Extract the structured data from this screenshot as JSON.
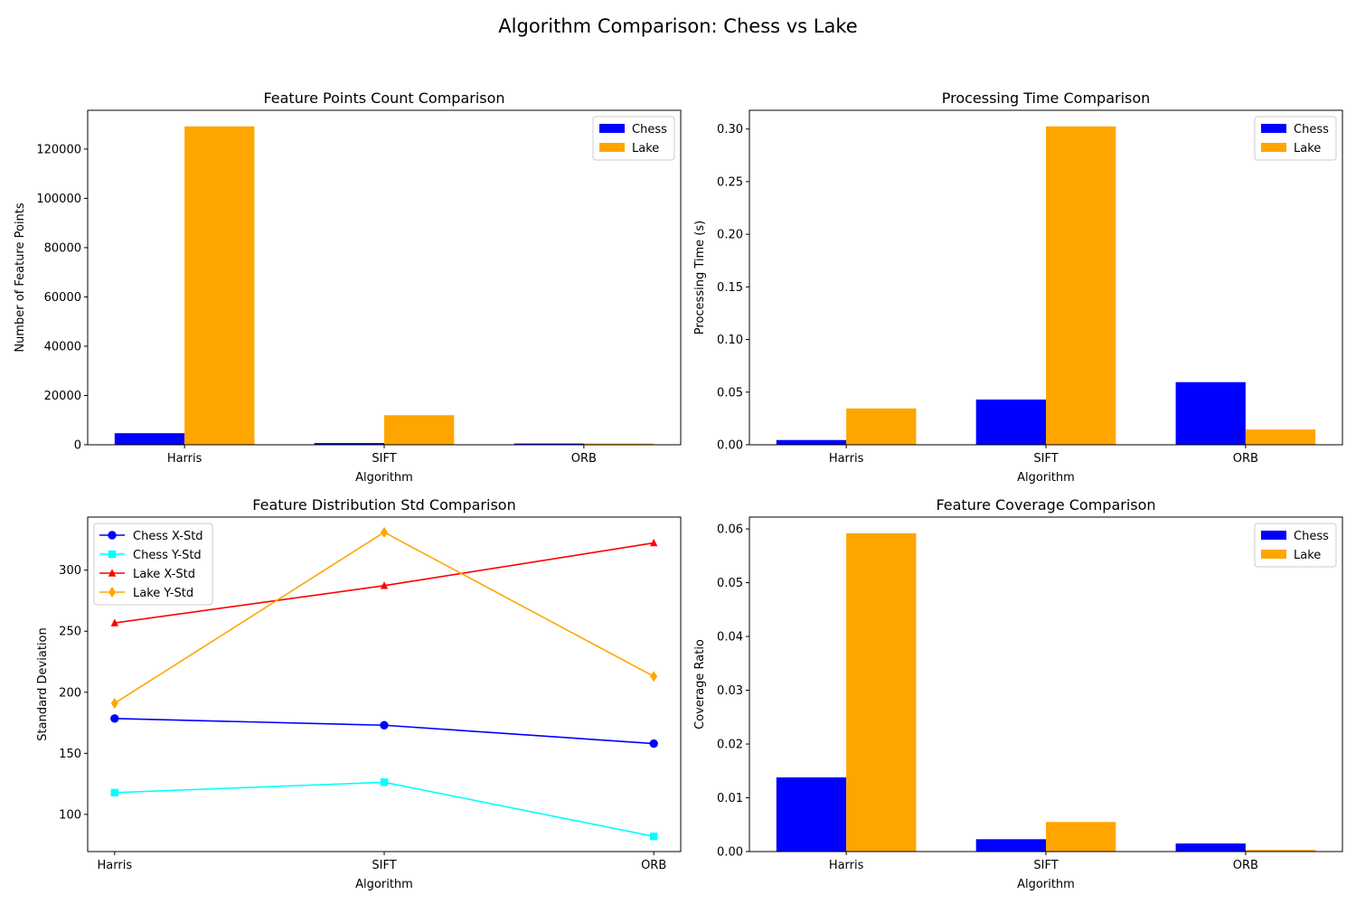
{
  "figure": {
    "title": "Algorithm Comparison: Chess vs Lake"
  },
  "colors": {
    "chess": "#0000ff",
    "lake": "#ffa500",
    "chess_x": "#0000ff",
    "chess_y": "#00ffff",
    "lake_x": "#ff0000",
    "lake_y": "#ffa500"
  },
  "chart_data": [
    {
      "type": "bar",
      "title": "Feature Points Count Comparison",
      "xlabel": "Algorithm",
      "ylabel": "Number of Feature Points",
      "categories": [
        "Harris",
        "SIFT",
        "ORB"
      ],
      "series": [
        {
          "name": "Chess",
          "values": [
            4700,
            700,
            500
          ]
        },
        {
          "name": "Lake",
          "values": [
            129200,
            12000,
            500
          ]
        }
      ],
      "ylim": [
        0,
        135740
      ],
      "yticks": [
        0,
        20000,
        40000,
        60000,
        80000,
        100000,
        120000
      ],
      "legend": "upper right",
      "grid": false
    },
    {
      "type": "bar",
      "title": "Processing Time Comparison",
      "xlabel": "Algorithm",
      "ylabel": "Processing Time (s)",
      "categories": [
        "Harris",
        "SIFT",
        "ORB"
      ],
      "series": [
        {
          "name": "Chess",
          "values": [
            0.0045,
            0.043,
            0.0595
          ]
        },
        {
          "name": "Lake",
          "values": [
            0.0345,
            0.3025,
            0.0145
          ]
        }
      ],
      "ylim": [
        0,
        0.3178
      ],
      "yticks": [
        0.0,
        0.05,
        0.1,
        0.15,
        0.2,
        0.25,
        0.3
      ],
      "legend": "upper right",
      "grid": false
    },
    {
      "type": "line",
      "title": "Feature Distribution Std Comparison",
      "xlabel": "Algorithm",
      "ylabel": "Standard Deviation",
      "categories": [
        "Harris",
        "SIFT",
        "ORB"
      ],
      "series": [
        {
          "name": "Chess X-Std",
          "values": [
            178.5,
            173.0,
            158.0
          ],
          "marker": "circle"
        },
        {
          "name": "Chess Y-Std",
          "values": [
            117.8,
            126.3,
            82.0
          ],
          "marker": "square"
        },
        {
          "name": "Lake X-Std",
          "values": [
            256.8,
            287.3,
            322.3
          ],
          "marker": "triangle"
        },
        {
          "name": "Lake Y-Std",
          "values": [
            191.0,
            331.0,
            213.0
          ],
          "marker": "diamond"
        }
      ],
      "ylim": [
        69.55,
        343.45
      ],
      "yticks": [
        100,
        150,
        200,
        250,
        300
      ],
      "legend": "upper left",
      "grid": false
    },
    {
      "type": "bar",
      "title": "Feature Coverage Comparison",
      "xlabel": "Algorithm",
      "ylabel": "Coverage Ratio",
      "categories": [
        "Harris",
        "SIFT",
        "ORB"
      ],
      "series": [
        {
          "name": "Chess",
          "values": [
            0.0138,
            0.0023,
            0.0015
          ]
        },
        {
          "name": "Lake",
          "values": [
            0.0592,
            0.0055,
            0.0003
          ]
        }
      ],
      "ylim": [
        0,
        0.0622
      ],
      "yticks": [
        0.0,
        0.01,
        0.02,
        0.03,
        0.04,
        0.05,
        0.06
      ],
      "legend": "upper right",
      "grid": false
    }
  ]
}
